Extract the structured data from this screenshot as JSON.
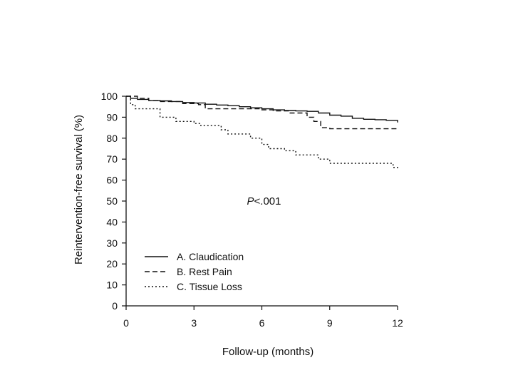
{
  "chart_data": {
    "type": "line",
    "xlabel": "Follow-up (months)",
    "ylabel": "Reintervention-free survival (%)",
    "xlim": [
      0,
      12
    ],
    "ylim": [
      0,
      100
    ],
    "xticks": [
      0,
      3,
      6,
      9,
      12
    ],
    "yticks": [
      0,
      10,
      20,
      30,
      40,
      50,
      60,
      70,
      80,
      90,
      100
    ],
    "grid": false,
    "legend_position": "bottom-left",
    "annotation": {
      "italic": "P",
      "rest": "<.001",
      "x": 6.0,
      "y": 50
    },
    "series": [
      {
        "name": "A. Claudication",
        "style": "solid",
        "color": "#111111",
        "points": [
          [
            0,
            100
          ],
          [
            0.2,
            99
          ],
          [
            0.5,
            98.5
          ],
          [
            1.0,
            98
          ],
          [
            1.5,
            97.8
          ],
          [
            2.0,
            97.5
          ],
          [
            2.5,
            97
          ],
          [
            3.0,
            96.8
          ],
          [
            3.5,
            96.2
          ],
          [
            4.0,
            95.8
          ],
          [
            4.5,
            95.5
          ],
          [
            5.0,
            95
          ],
          [
            5.5,
            94.5
          ],
          [
            6.0,
            94
          ],
          [
            6.5,
            93.5
          ],
          [
            7.0,
            93.2
          ],
          [
            7.5,
            93
          ],
          [
            8.0,
            92.8
          ],
          [
            8.5,
            92
          ],
          [
            9.0,
            91
          ],
          [
            9.5,
            90.5
          ],
          [
            10.0,
            89.5
          ],
          [
            10.5,
            89
          ],
          [
            11.0,
            88.8
          ],
          [
            11.5,
            88.5
          ],
          [
            12.0,
            87.5
          ]
        ]
      },
      {
        "name": "B. Rest Pain",
        "style": "dashed",
        "color": "#111111",
        "points": [
          [
            0,
            100
          ],
          [
            0.5,
            99
          ],
          [
            1.0,
            98
          ],
          [
            1.5,
            97.5
          ],
          [
            2.5,
            96.5
          ],
          [
            3.2,
            96
          ],
          [
            3.5,
            94
          ],
          [
            4.5,
            94
          ],
          [
            5.5,
            94
          ],
          [
            6.0,
            93.5
          ],
          [
            6.5,
            93
          ],
          [
            7.2,
            92
          ],
          [
            8.0,
            90
          ],
          [
            8.3,
            88
          ],
          [
            8.6,
            85
          ],
          [
            9.0,
            84.5
          ],
          [
            12.0,
            84.5
          ]
        ]
      },
      {
        "name": "C. Tissue Loss",
        "style": "dotted",
        "color": "#111111",
        "points": [
          [
            0,
            100
          ],
          [
            0.2,
            96
          ],
          [
            0.4,
            94
          ],
          [
            1.0,
            94
          ],
          [
            1.5,
            90
          ],
          [
            2.2,
            88
          ],
          [
            3.0,
            87
          ],
          [
            3.3,
            86
          ],
          [
            4.2,
            84
          ],
          [
            4.5,
            82
          ],
          [
            5.5,
            80
          ],
          [
            6.0,
            77
          ],
          [
            6.3,
            75
          ],
          [
            7.0,
            74
          ],
          [
            7.5,
            72
          ],
          [
            8.5,
            70
          ],
          [
            9.0,
            68
          ],
          [
            11.5,
            68
          ],
          [
            11.8,
            66
          ],
          [
            12.0,
            65
          ]
        ]
      }
    ]
  }
}
